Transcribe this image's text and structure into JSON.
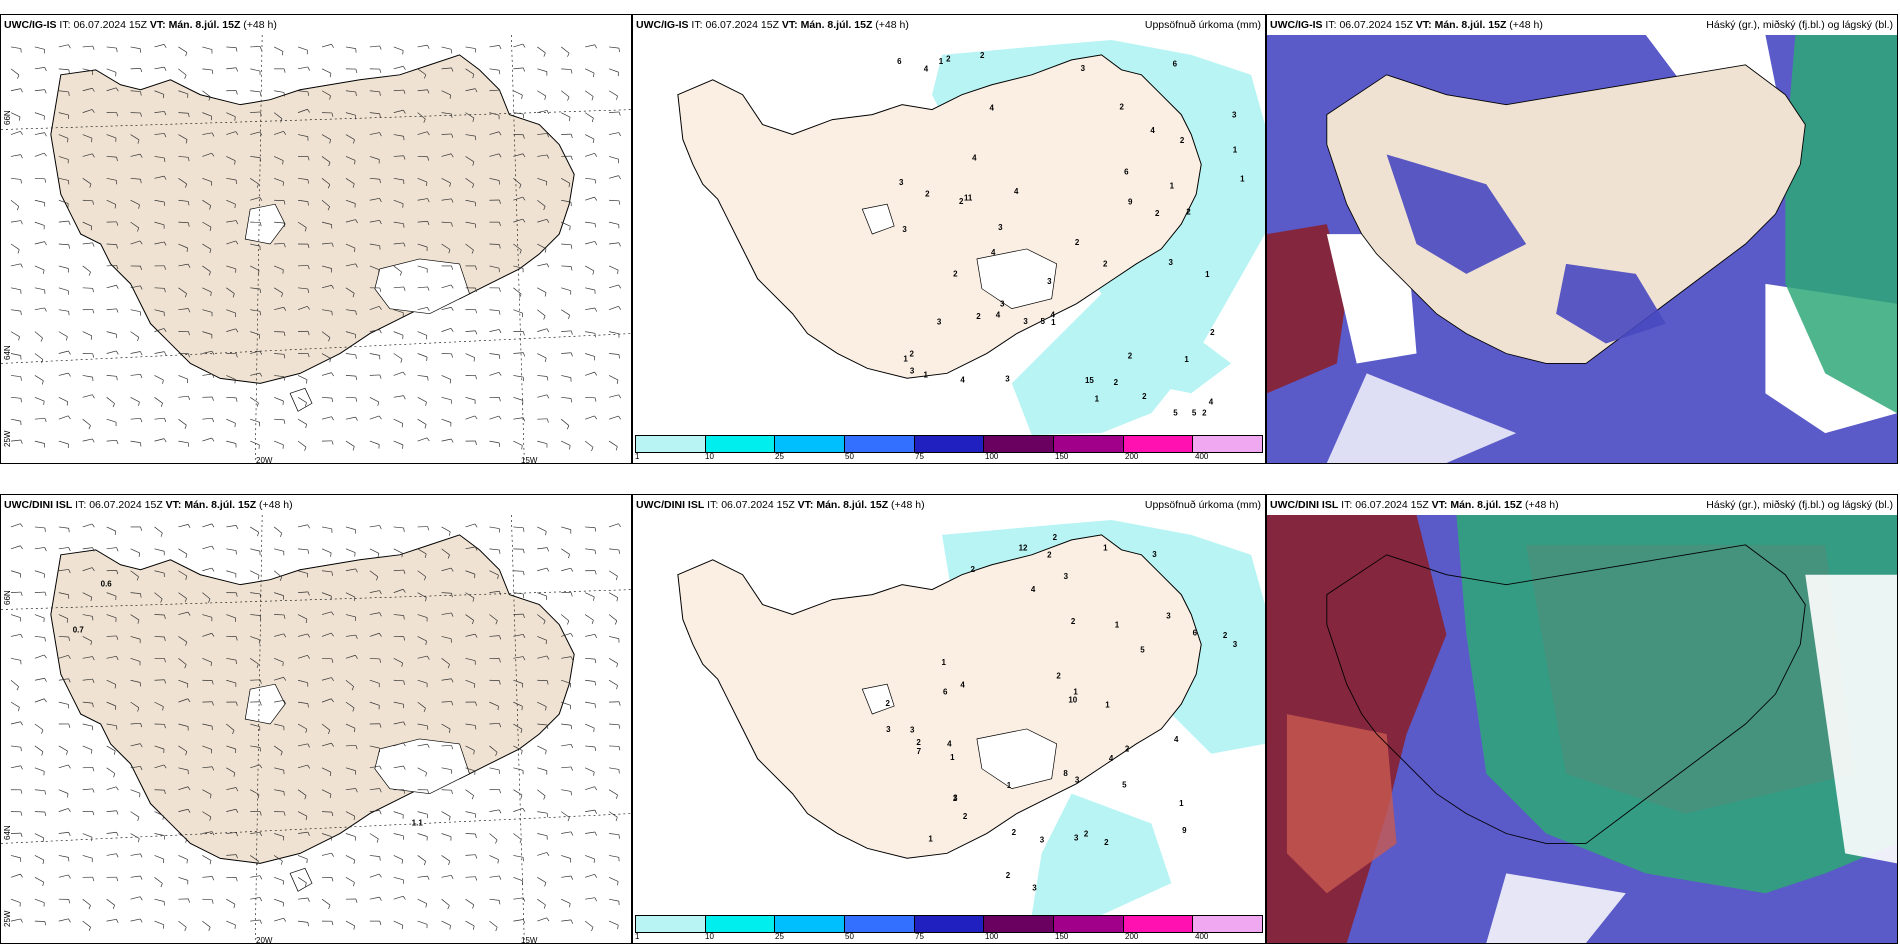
{
  "rows": [
    {
      "model": "UWC/IG-IS",
      "it_label": "IT:",
      "it": "06.07.2024 15Z",
      "vt_label": "VT:",
      "vt": "Mán. 8.júl. 15Z",
      "lead": "(+48 h)"
    },
    {
      "model": "UWC/DINI ISL",
      "it_label": "IT:",
      "it": "06.07.2024 15Z",
      "vt_label": "VT:",
      "vt": "Mán. 8.júl. 15Z",
      "lead": "(+48 h)"
    }
  ],
  "precip_title": "Uppsöfnuð úrkoma (mm)",
  "cloud_title": "Háský (gr.), miðský (fj.bl.) og lágský (bl.)",
  "axis": {
    "lat_north": "66N",
    "lat_south": "64N",
    "lon_20": "20W",
    "lon_15": "15W",
    "lon_25": "25W"
  },
  "colorbar": {
    "ticks": [
      "1",
      "10",
      "25",
      "50",
      "75",
      "100",
      "150",
      "200",
      "400"
    ],
    "colors": [
      "#b8f4f4",
      "#00eeee",
      "#00bfff",
      "#3370ff",
      "#2020c0",
      "#6a0060",
      "#a0008a",
      "#ff10b0",
      "#f0a8f0"
    ]
  },
  "wind_labels": {
    "row2": [
      "0.6",
      "0.7",
      "1.1"
    ]
  },
  "precip_numbers": {
    "row1": [
      "3",
      "2",
      "1",
      "3",
      "2",
      "4",
      "5",
      "4",
      "4",
      "2",
      "2",
      "3",
      "6",
      "5",
      "3",
      "2",
      "2",
      "1",
      "3",
      "4",
      "5",
      "11",
      "2",
      "2",
      "1",
      "9",
      "15",
      "2",
      "2",
      "1",
      "3",
      "3",
      "1",
      "2",
      "4",
      "3",
      "2",
      "2",
      "2",
      "3",
      "3",
      "4",
      "1",
      "2",
      "1",
      "3",
      "4",
      "4",
      "2",
      "2",
      "1",
      "1",
      "2",
      "6",
      "1",
      "6",
      "4",
      "4",
      "3"
    ],
    "row2": [
      "1",
      "3",
      "2",
      "3",
      "3",
      "4",
      "1",
      "3",
      "6",
      "5",
      "3",
      "2",
      "5",
      "10",
      "3",
      "12",
      "9",
      "2",
      "1",
      "2",
      "2",
      "2",
      "4",
      "1",
      "2",
      "2",
      "2",
      "1",
      "2",
      "2",
      "1",
      "2",
      "2",
      "8",
      "1",
      "7",
      "2",
      "1",
      "1",
      "4",
      "3",
      "3",
      "3",
      "4",
      "3",
      "6",
      "4",
      "3",
      "1"
    ]
  }
}
